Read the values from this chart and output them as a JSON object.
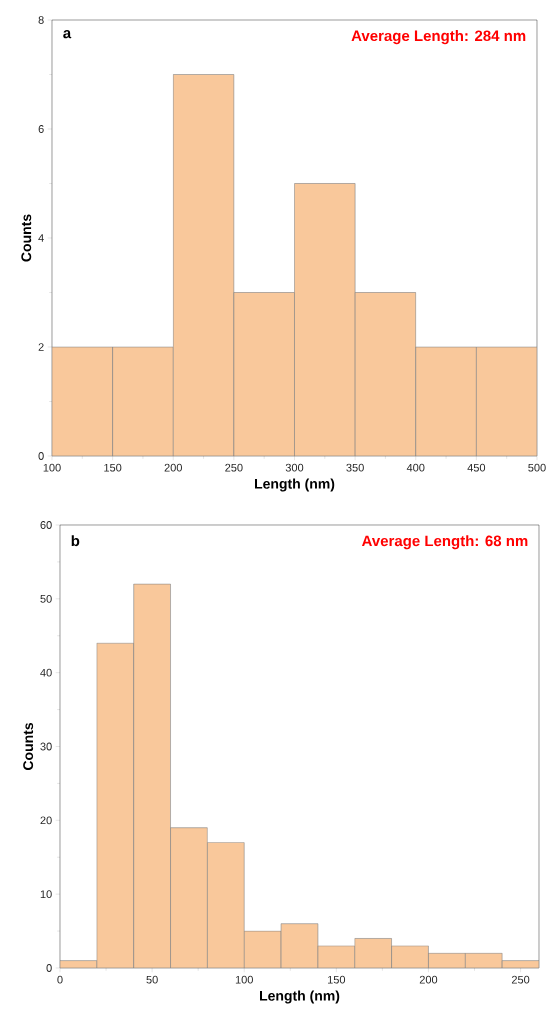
{
  "chart_data": [
    {
      "type": "histogram",
      "title": "a",
      "annotations": [
        "Average Length: 284 nm"
      ],
      "xlabel": "Length (nm)",
      "ylabel": "Counts",
      "color": "#f9c89b",
      "bins": [
        100,
        150,
        200,
        250,
        300,
        350,
        400,
        450,
        500
      ],
      "values": [
        2,
        2,
        7,
        3,
        5,
        3,
        2,
        2
      ],
      "xlim": [
        100,
        500
      ],
      "ylim": [
        0,
        8
      ],
      "xticks": [
        100,
        150,
        200,
        250,
        300,
        350,
        400,
        450,
        500
      ],
      "yticks": [
        0,
        2,
        4,
        6,
        8
      ]
    },
    {
      "type": "histogram",
      "title": "b",
      "annotations": [
        "Average Length: 68 nm"
      ],
      "xlabel": "Length (nm)",
      "ylabel": "Counts",
      "color": "#f9c89b",
      "bins": [
        0,
        20,
        40,
        60,
        80,
        100,
        120,
        140,
        160,
        180,
        200,
        220,
        240,
        260
      ],
      "values": [
        1,
        44,
        52,
        19,
        17,
        5,
        6,
        3,
        4,
        3,
        2,
        2,
        1
      ],
      "xlim": [
        0,
        260
      ],
      "ylim": [
        0,
        60
      ],
      "xticks": [
        0,
        50,
        100,
        150,
        200,
        250
      ],
      "yticks": [
        0,
        10,
        20,
        30,
        40,
        50,
        60
      ]
    }
  ]
}
